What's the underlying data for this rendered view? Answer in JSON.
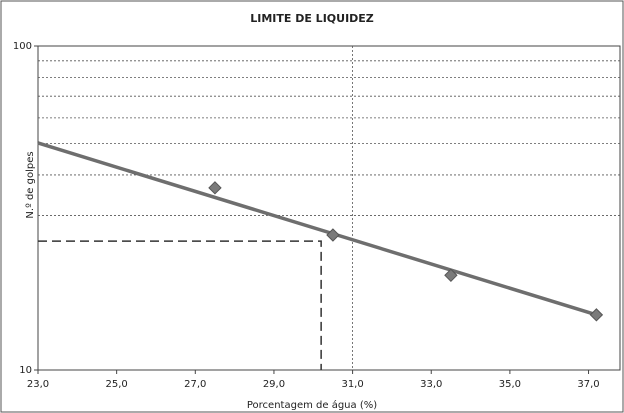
{
  "chart_data": {
    "type": "scatter",
    "title": "LIMITE DE LIQUIDEZ",
    "xlabel": "Porcentagem de água (%)",
    "ylabel": "N.º de golpes",
    "series": [
      {
        "x": [
          27.5,
          30.5,
          33.5,
          37.2
        ],
        "values": [
          36.5,
          26.1,
          19.6,
          14.8
        ],
        "color": "#7a7a7a"
      }
    ],
    "trendline": {
      "x": [
        23,
        37.2
      ],
      "values": [
        50.2,
        14.8
      ],
      "color": "#6e6e6e"
    },
    "liquid_limit": {
      "x": 30.2,
      "y": 25
    },
    "xlim": [
      23,
      37.8
    ],
    "xticks": [
      {
        "value": 23,
        "label": "23,0"
      },
      {
        "value": 25,
        "label": "25,0"
      },
      {
        "value": 27,
        "label": "27,0"
      },
      {
        "value": 29,
        "label": "29,0"
      },
      {
        "value": 31,
        "label": "31,0"
      },
      {
        "value": 33,
        "label": "33,0"
      },
      {
        "value": 35,
        "label": "35,0"
      },
      {
        "value": 37,
        "label": "37,0"
      }
    ],
    "xgrid": [
      31
    ],
    "ylim": [
      10,
      100
    ],
    "yticks": [
      10,
      100
    ],
    "ygrid": [
      30,
      40,
      50,
      60,
      70,
      80,
      90
    ],
    "log_y": true
  }
}
